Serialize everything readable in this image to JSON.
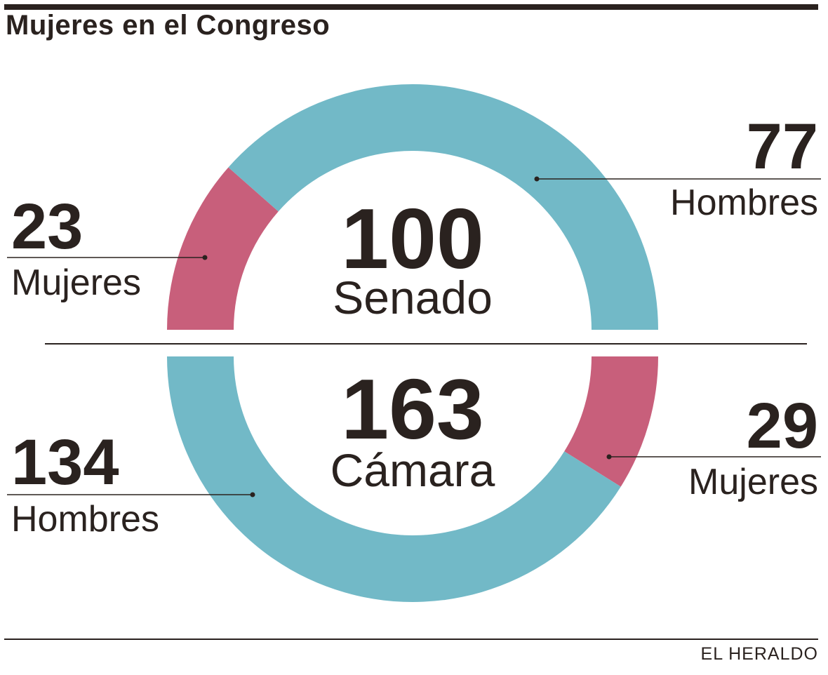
{
  "title": "Mujeres en el Congreso",
  "source": "EL HERALDO",
  "colors": {
    "mujeres": "#c85f7b",
    "hombres": "#72b9c7",
    "ink": "#2a221f"
  },
  "chart_data": [
    {
      "type": "pie",
      "chamber": "Senado",
      "total": 100,
      "total_label": "100",
      "slices": [
        {
          "name": "Mujeres",
          "value": 23,
          "value_label": "23",
          "color_key": "mujeres"
        },
        {
          "name": "Hombres",
          "value": 77,
          "value_label": "77",
          "color_key": "hombres"
        }
      ]
    },
    {
      "type": "pie",
      "chamber": "Cámara",
      "total": 163,
      "total_label": "163",
      "slices": [
        {
          "name": "Mujeres",
          "value": 29,
          "value_label": "29",
          "color_key": "mujeres"
        },
        {
          "name": "Hombres",
          "value": 134,
          "value_label": "134",
          "color_key": "hombres"
        }
      ]
    }
  ]
}
